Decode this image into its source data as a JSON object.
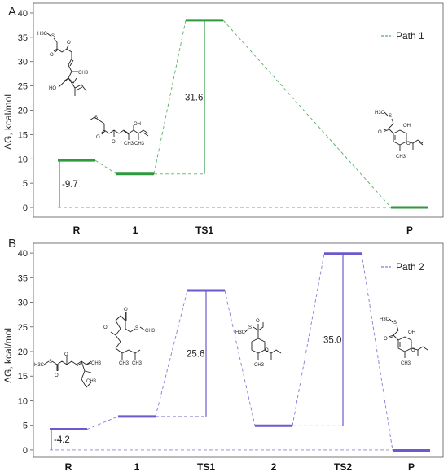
{
  "chart_data": [
    {
      "type": "line",
      "panel_label": "A",
      "ylabel": "ΔG, kcal/mol",
      "ylim": [
        -2,
        42
      ],
      "yticks": [
        0,
        5,
        10,
        15,
        20,
        25,
        30,
        35,
        40
      ],
      "categories": [
        "R",
        "1",
        "TS1",
        "P"
      ],
      "series": [
        {
          "name": "Path 1",
          "color": "#2e9a3f",
          "values": [
            9.7,
            6.9,
            38.5,
            0
          ]
        }
      ],
      "annotations": [
        {
          "text": "-9.7",
          "kind": "energy-difference",
          "from": 0,
          "to": 9.7,
          "category": "R"
        },
        {
          "text": "31.6",
          "kind": "energy-difference",
          "from": 6.9,
          "to": 38.5,
          "category": "TS1"
        }
      ],
      "legend_position": "top-right",
      "grid": false
    },
    {
      "type": "line",
      "panel_label": "B",
      "ylabel": "ΔG, kcal/mol",
      "ylim": [
        -1.5,
        42
      ],
      "yticks": [
        0,
        5,
        10,
        15,
        20,
        25,
        30,
        35,
        40
      ],
      "categories": [
        "R",
        "1",
        "TS1",
        "2",
        "TS2",
        "P"
      ],
      "series": [
        {
          "name": "Path 2",
          "color": "#6a5acd",
          "values": [
            4.2,
            6.8,
            32.4,
            4.9,
            39.9,
            -0.1
          ]
        }
      ],
      "annotations": [
        {
          "text": "-4.2",
          "kind": "energy-difference",
          "from": 0,
          "to": 4.2,
          "category": "R"
        },
        {
          "text": "25.6",
          "kind": "energy-difference",
          "from": 6.8,
          "to": 32.4,
          "category": "TS1"
        },
        {
          "text": "35.0",
          "kind": "energy-difference",
          "from": 4.9,
          "to": 39.9,
          "category": "TS2"
        }
      ],
      "legend_position": "top-right",
      "grid": false
    }
  ],
  "structure_labels": {
    "methyl": "H3C",
    "sulfur": "S",
    "oxygen": "O",
    "hydroxyl": "OH",
    "hydroxyl_left": "HO",
    "methyl_right": "CH3"
  }
}
